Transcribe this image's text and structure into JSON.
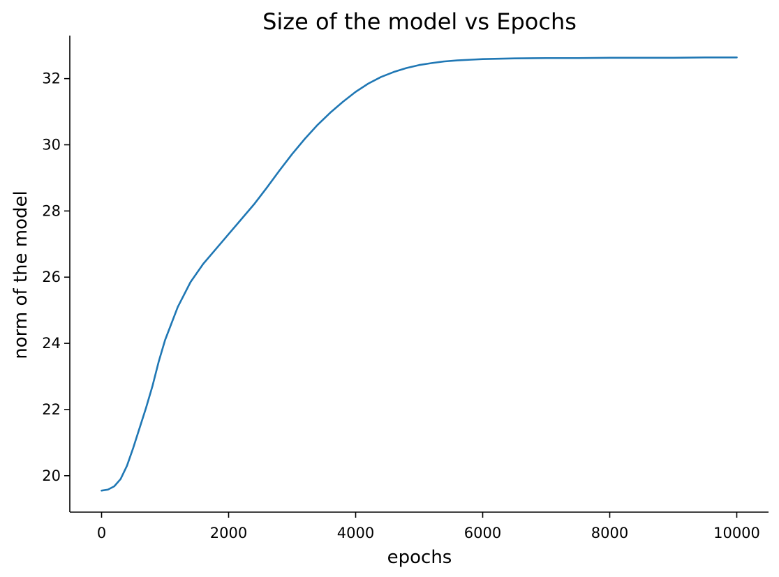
{
  "chart_data": {
    "type": "line",
    "title": "Size of the model vs Epochs",
    "xlabel": "epochs",
    "ylabel": "norm of the model",
    "xlim": [
      -500,
      10500
    ],
    "ylim": [
      18.9,
      33.3
    ],
    "xticks": [
      0,
      2000,
      4000,
      6000,
      8000,
      10000
    ],
    "xtick_labels": [
      "0",
      "2000",
      "4000",
      "6000",
      "8000",
      "10000"
    ],
    "yticks": [
      20,
      22,
      24,
      26,
      28,
      30,
      32
    ],
    "ytick_labels": [
      "20",
      "22",
      "24",
      "26",
      "28",
      "30",
      "32"
    ],
    "grid": false,
    "legend": "none",
    "series": [
      {
        "color": "#1f77b4",
        "x": [
          0,
          100,
          200,
          300,
          400,
          500,
          600,
          700,
          800,
          900,
          1000,
          1200,
          1400,
          1600,
          1800,
          2000,
          2200,
          2400,
          2600,
          2800,
          3000,
          3200,
          3400,
          3600,
          3800,
          4000,
          4200,
          4400,
          4600,
          4800,
          5000,
          5200,
          5400,
          5600,
          5800,
          6000,
          6500,
          7000,
          7500,
          8000,
          8500,
          9000,
          9500,
          10000
        ],
        "y": [
          19.55,
          19.58,
          19.68,
          19.9,
          20.3,
          20.85,
          21.45,
          22.05,
          22.7,
          23.45,
          24.1,
          25.1,
          25.85,
          26.4,
          26.85,
          27.3,
          27.75,
          28.2,
          28.7,
          29.22,
          29.72,
          30.18,
          30.6,
          30.97,
          31.3,
          31.6,
          31.85,
          32.05,
          32.2,
          32.32,
          32.41,
          32.47,
          32.52,
          32.55,
          32.57,
          32.59,
          32.61,
          32.62,
          32.62,
          32.63,
          32.63,
          32.63,
          32.64,
          32.64
        ]
      }
    ]
  }
}
